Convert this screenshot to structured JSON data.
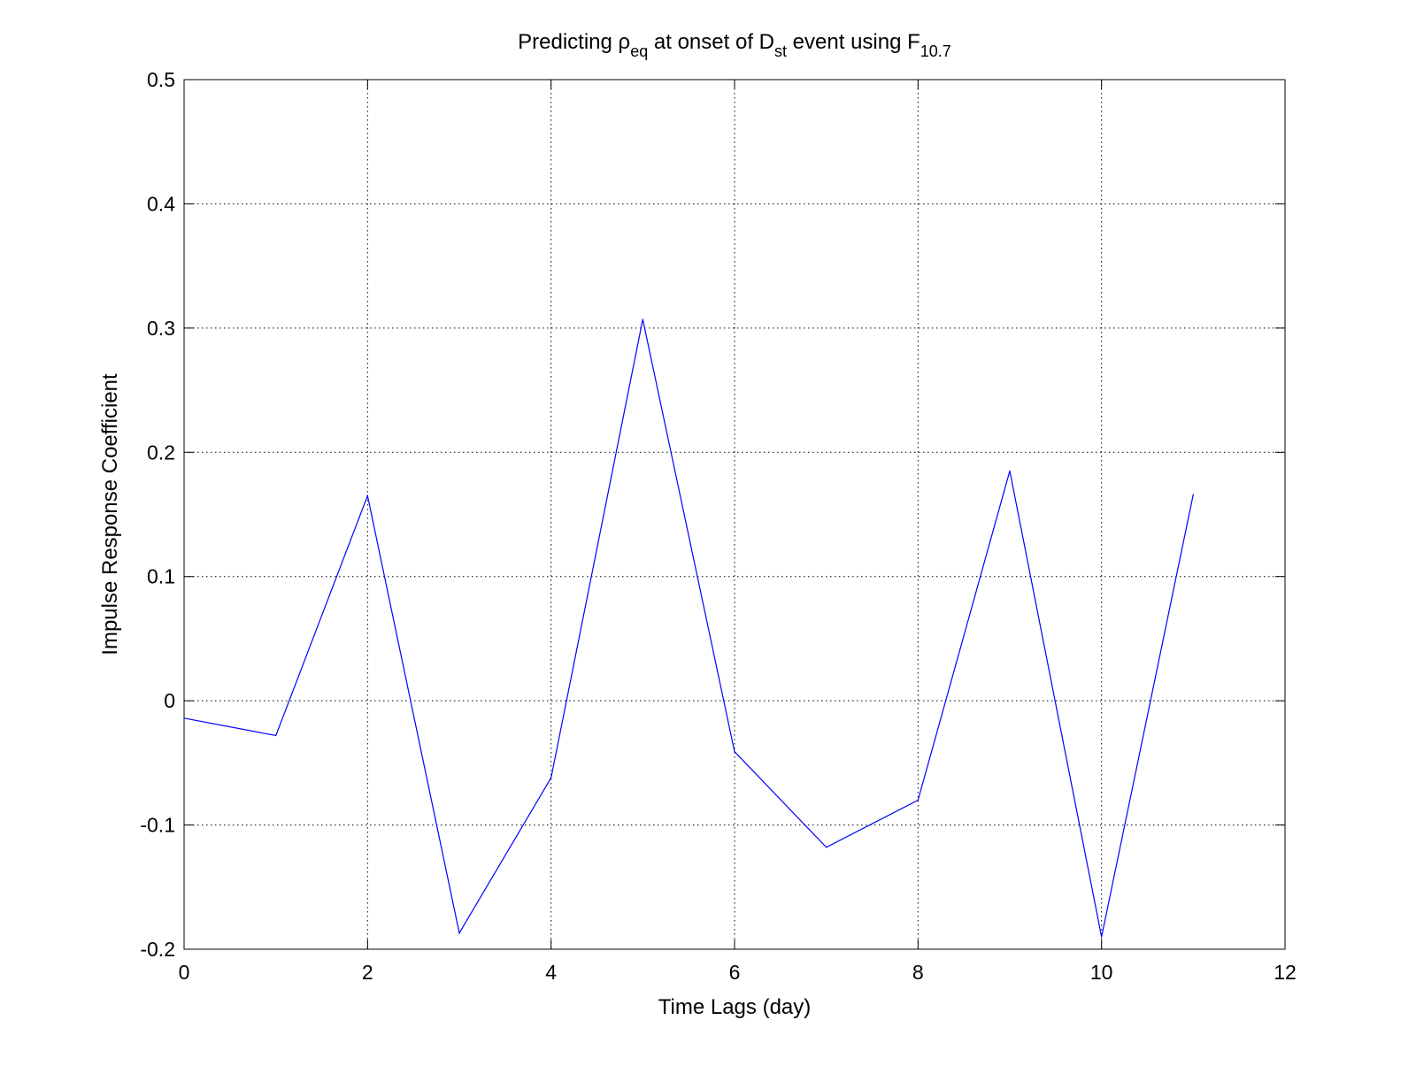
{
  "chart_data": {
    "type": "line",
    "title": {
      "parts": [
        {
          "text": "Predicting ",
          "style": "normal"
        },
        {
          "text": "ρ",
          "style": "normal"
        },
        {
          "text": "eq",
          "style": "sub"
        },
        {
          "text": " at onset of ",
          "style": "normal"
        },
        {
          "text": "D",
          "style": "normal"
        },
        {
          "text": "st",
          "style": "sub"
        },
        {
          "text": " event using ",
          "style": "normal"
        },
        {
          "text": "F",
          "style": "normal"
        },
        {
          "text": "10.7",
          "style": "sub"
        }
      ]
    },
    "xlabel": "Time Lags (day)",
    "ylabel": "Impulse Response Coefficient",
    "xlim": [
      0,
      12
    ],
    "ylim": [
      -0.2,
      0.5
    ],
    "xticks": [
      0,
      2,
      4,
      6,
      8,
      10,
      12
    ],
    "xtick_labels": [
      "0",
      "2",
      "4",
      "6",
      "8",
      "10",
      "12"
    ],
    "yticks": [
      -0.2,
      -0.1,
      0,
      0.1,
      0.2,
      0.3,
      0.4,
      0.5
    ],
    "ytick_labels": [
      "-0.2",
      "-0.1",
      "0",
      "0.1",
      "0.2",
      "0.3",
      "0.4",
      "0.5"
    ],
    "grid": true,
    "grid_style": "dotted",
    "series": [
      {
        "color": "#0000ff",
        "x": [
          0,
          1,
          2,
          3,
          4,
          5,
          6,
          7,
          8,
          9,
          10,
          11
        ],
        "y": [
          -0.014,
          -0.028,
          0.165,
          -0.187,
          -0.062,
          0.307,
          -0.041,
          -0.118,
          -0.08,
          0.185,
          -0.19,
          0.166
        ]
      }
    ]
  }
}
